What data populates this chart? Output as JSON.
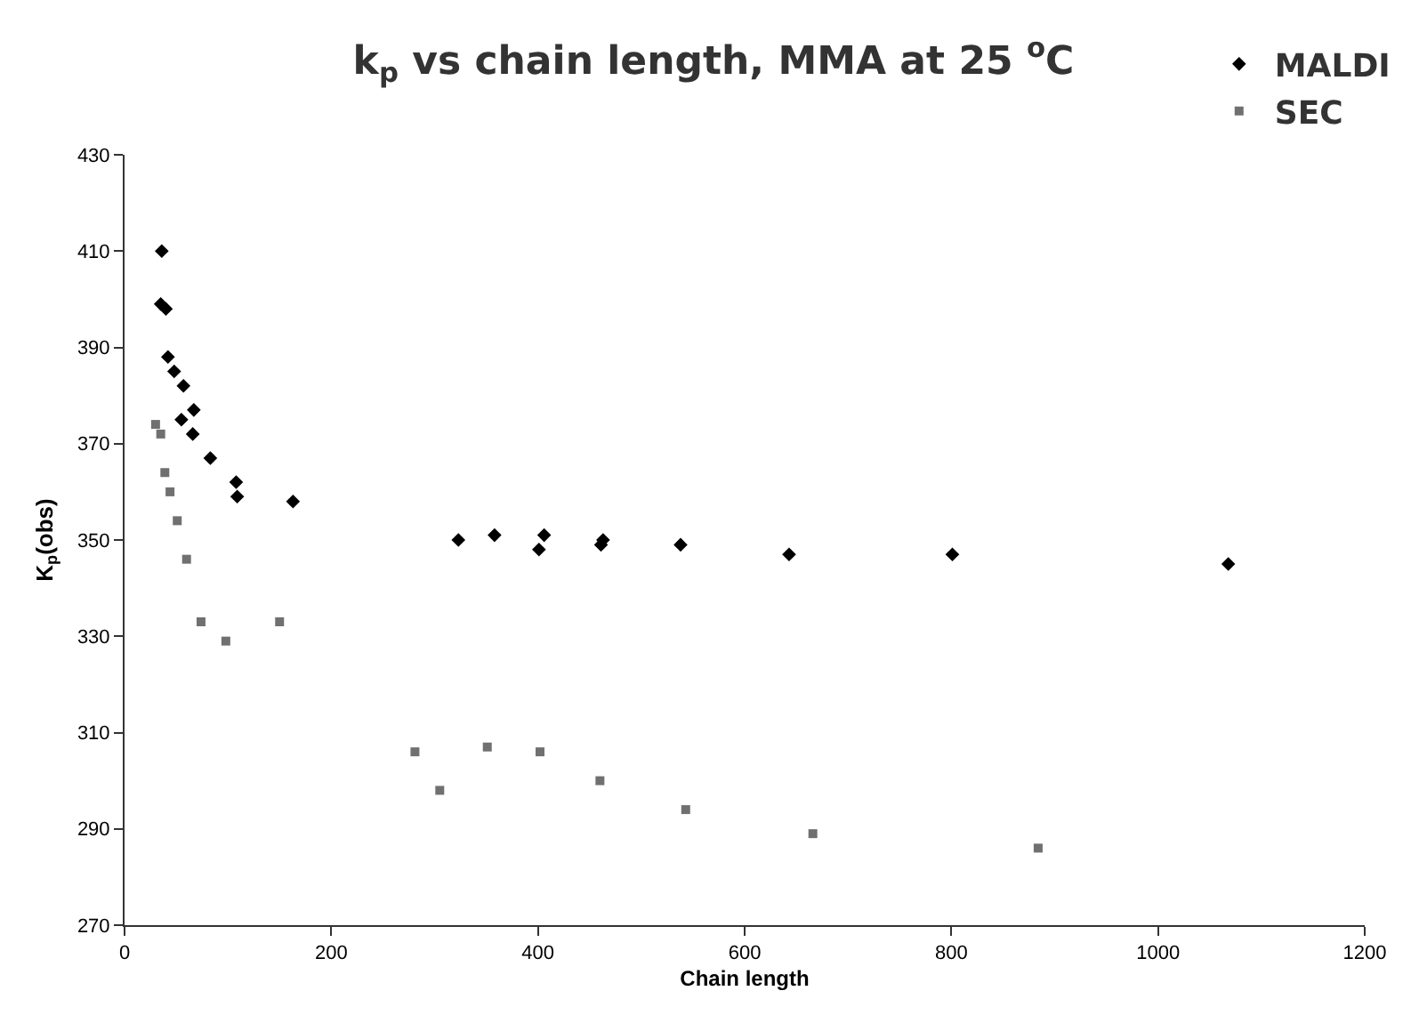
{
  "chart_data": {
    "type": "scatter",
    "title": "k$_{p}$ vs chain length, MMA at 25 $^{o}$C",
    "xlabel": "Chain length",
    "ylabel": "K$_{p}$(obs)",
    "series": [
      {
        "name": "MALDI",
        "color": "#000000",
        "marker": "diamond",
        "x": [
          36,
          35,
          40,
          42,
          48,
          57,
          67,
          55,
          66,
          83,
          108,
          109,
          163,
          323,
          358,
          401,
          406,
          461,
          463,
          538,
          643,
          801,
          1068
        ],
        "values": [
          410,
          399,
          398,
          388,
          385,
          382,
          377,
          375,
          372,
          367,
          362,
          359,
          358,
          350,
          351,
          348,
          351,
          349,
          350,
          349,
          347,
          347,
          345
        ]
      },
      {
        "name": "SEC",
        "color": "#707070",
        "marker": "square",
        "x": [
          30,
          35,
          39,
          44,
          51,
          60,
          74,
          98,
          150,
          281,
          305,
          351,
          402,
          460,
          543,
          666,
          884
        ],
        "values": [
          374,
          372,
          364,
          360,
          354,
          346,
          333,
          329,
          333,
          306,
          298,
          307,
          306,
          300,
          294,
          289,
          286
        ]
      }
    ],
    "xlim": [
      0,
      1200
    ],
    "xticks": [
      0,
      200,
      400,
      600,
      800,
      1000,
      1200
    ],
    "ylim": [
      270,
      430
    ],
    "yticks": [
      270,
      290,
      310,
      330,
      350,
      370,
      390,
      410,
      430
    ],
    "grid": false,
    "legend": "top right"
  }
}
